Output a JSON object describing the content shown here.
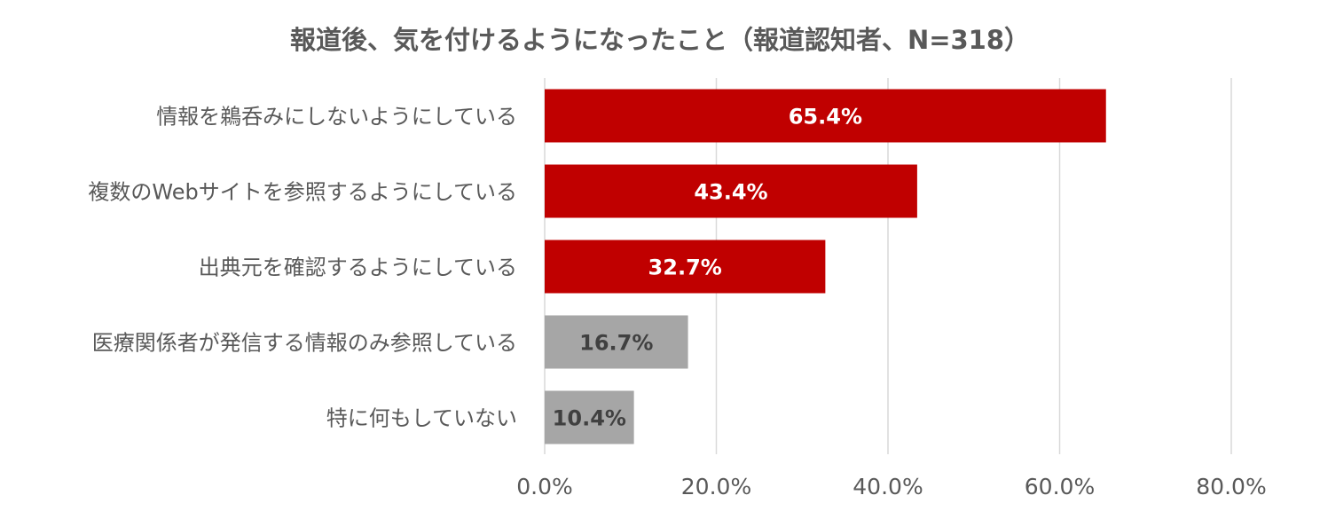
{
  "chart_data": {
    "type": "bar",
    "orientation": "horizontal",
    "title": "報道後、気を付けるようになったこと（報道認知者、N=318）",
    "categories": [
      "情報を鵜呑みにしないようにしている",
      "複数のWebサイトを参照するようにしている",
      "出典元を確認するようにしている",
      "医療関係者が発信する情報のみ参照している",
      "特に何もしていない"
    ],
    "values": [
      65.4,
      43.4,
      32.7,
      16.7,
      10.4
    ],
    "value_labels": [
      "65.4%",
      "43.4%",
      "32.7%",
      "16.7%",
      "10.4%"
    ],
    "bar_colors": [
      "#c00000",
      "#c00000",
      "#c00000",
      "#a6a6a6",
      "#a6a6a6"
    ],
    "label_colors": [
      "#ffffff",
      "#ffffff",
      "#ffffff",
      "#404040",
      "#404040"
    ],
    "xlim": [
      0,
      80
    ],
    "xticks": [
      0,
      20,
      40,
      60,
      80
    ],
    "xtick_labels": [
      "0.0%",
      "20.0%",
      "40.0%",
      "60.0%",
      "80.0%"
    ],
    "grid": true,
    "grid_color": "#d9d9d9",
    "legend": "none"
  }
}
